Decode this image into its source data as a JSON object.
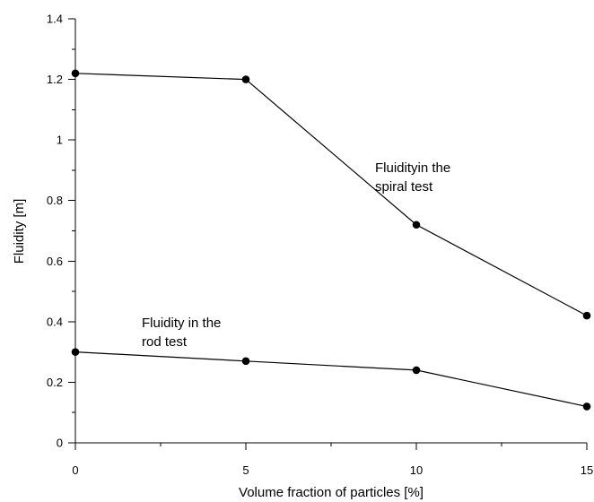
{
  "chart_data": {
    "type": "line",
    "x": [
      0,
      5,
      10,
      15
    ],
    "series": [
      {
        "values": [
          1.22,
          1.2,
          0.72,
          0.42
        ]
      },
      {
        "values": [
          0.3,
          0.27,
          0.24,
          0.12
        ]
      }
    ],
    "annotations": [
      {
        "lines": [
          "Fluidityin the",
          "spiral test"
        ]
      },
      {
        "lines": [
          "Fluidity in the",
          "rod test"
        ]
      }
    ],
    "xlabel": "Volume fraction of particles [%]",
    "ylabel": "Fluidity [m]",
    "xlim": [
      0,
      15
    ],
    "ylim": [
      0,
      1.4
    ],
    "xticks": [
      0,
      5,
      10,
      15
    ],
    "xtick_labels": [
      "0",
      "5",
      "10",
      "15"
    ],
    "yticks": [
      0,
      0.2,
      0.4,
      0.6,
      0.8,
      1,
      1.2,
      1.4
    ],
    "ytick_labels": [
      "0",
      "0.2",
      "0.4",
      "0.6",
      "0.8",
      "1",
      "1.2",
      "1.4"
    ],
    "grid": false,
    "line_color": "#000000",
    "marker_color": "#000000"
  }
}
